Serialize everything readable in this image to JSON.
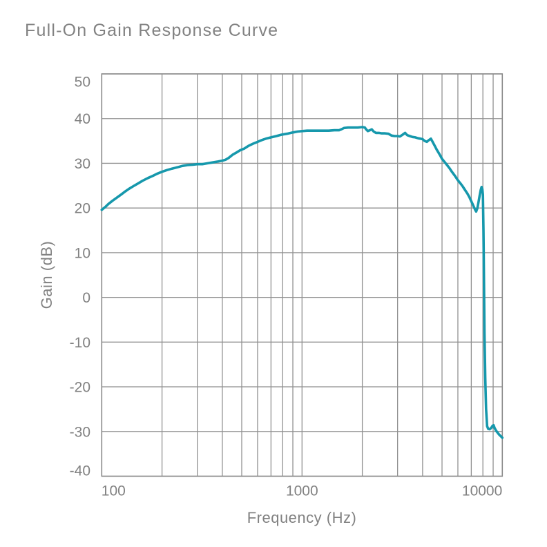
{
  "chart_data": {
    "type": "line",
    "title": "Full-On Gain Response Curve",
    "xlabel": "Frequency (Hz)",
    "ylabel": "Gain (dB)",
    "x_scale": "log",
    "xlim": [
      100,
      10000
    ],
    "ylim": [
      -40,
      50
    ],
    "grid": true,
    "legend": false,
    "x_ticks": [
      100,
      1000,
      10000
    ],
    "x_tick_labels": [
      "100",
      "1000",
      "10000"
    ],
    "y_ticks": [
      50,
      40,
      30,
      20,
      10,
      0,
      -10,
      -20,
      -30,
      -40
    ],
    "y_tick_labels": [
      "50",
      "40",
      "30",
      "20",
      "10",
      "0",
      "-10",
      "-20",
      "-30",
      "-40"
    ],
    "x_gridlines": [
      100,
      200,
      300,
      400,
      500,
      600,
      700,
      800,
      900,
      1000,
      2000,
      3000,
      4000,
      5000,
      6000,
      7000,
      8000,
      9000,
      10000
    ],
    "y_gridlines": [
      -40,
      -30,
      -20,
      -10,
      0,
      10,
      20,
      30,
      40,
      50
    ],
    "line_color": "#1698ac",
    "grid_color": "#919191",
    "frame_color": "#8a8a8a",
    "label_color": "#818181",
    "title_color": "#828282",
    "series": [
      {
        "name": "Full-On Gain",
        "points": [
          [
            100,
            19.6
          ],
          [
            104,
            20.2
          ],
          [
            108,
            20.9
          ],
          [
            113,
            21.6
          ],
          [
            118,
            22.2
          ],
          [
            124,
            22.9
          ],
          [
            130,
            23.6
          ],
          [
            137,
            24.3
          ],
          [
            144,
            24.9
          ],
          [
            152,
            25.5
          ],
          [
            160,
            26.1
          ],
          [
            170,
            26.7
          ],
          [
            180,
            27.2
          ],
          [
            190,
            27.7
          ],
          [
            200,
            28.1
          ],
          [
            212,
            28.5
          ],
          [
            224,
            28.8
          ],
          [
            238,
            29.1
          ],
          [
            252,
            29.4
          ],
          [
            268,
            29.6
          ],
          [
            285,
            29.7
          ],
          [
            300,
            29.8
          ],
          [
            318,
            29.8
          ],
          [
            338,
            30.0
          ],
          [
            358,
            30.2
          ],
          [
            380,
            30.4
          ],
          [
            400,
            30.6
          ],
          [
            415,
            30.8
          ],
          [
            430,
            31.2
          ],
          [
            450,
            31.9
          ],
          [
            470,
            32.4
          ],
          [
            490,
            32.9
          ],
          [
            515,
            33.3
          ],
          [
            540,
            33.9
          ],
          [
            570,
            34.4
          ],
          [
            600,
            34.8
          ],
          [
            630,
            35.2
          ],
          [
            660,
            35.5
          ],
          [
            700,
            35.8
          ],
          [
            745,
            36.1
          ],
          [
            790,
            36.4
          ],
          [
            840,
            36.6
          ],
          [
            900,
            36.9
          ],
          [
            950,
            37.1
          ],
          [
            1000,
            37.2
          ],
          [
            1060,
            37.3
          ],
          [
            1130,
            37.3
          ],
          [
            1200,
            37.3
          ],
          [
            1280,
            37.3
          ],
          [
            1360,
            37.3
          ],
          [
            1450,
            37.4
          ],
          [
            1530,
            37.4
          ],
          [
            1570,
            37.6
          ],
          [
            1620,
            37.9
          ],
          [
            1700,
            38.0
          ],
          [
            1800,
            38.0
          ],
          [
            1900,
            38.0
          ],
          [
            2000,
            38.1
          ],
          [
            2060,
            38.0
          ],
          [
            2090,
            37.6
          ],
          [
            2130,
            37.2
          ],
          [
            2180,
            37.4
          ],
          [
            2230,
            37.6
          ],
          [
            2280,
            37.1
          ],
          [
            2340,
            36.8
          ],
          [
            2420,
            36.8
          ],
          [
            2500,
            36.7
          ],
          [
            2600,
            36.7
          ],
          [
            2700,
            36.6
          ],
          [
            2800,
            36.2
          ],
          [
            2900,
            36.1
          ],
          [
            3000,
            36.1
          ],
          [
            3080,
            36.0
          ],
          [
            3180,
            36.4
          ],
          [
            3270,
            36.8
          ],
          [
            3350,
            36.3
          ],
          [
            3450,
            36.1
          ],
          [
            3560,
            35.9
          ],
          [
            3680,
            35.8
          ],
          [
            3800,
            35.6
          ],
          [
            3900,
            35.5
          ],
          [
            4000,
            35.4
          ],
          [
            4100,
            35.0
          ],
          [
            4200,
            34.8
          ],
          [
            4300,
            35.2
          ],
          [
            4400,
            35.5
          ],
          [
            4500,
            34.7
          ],
          [
            4600,
            33.9
          ],
          [
            4700,
            33.1
          ],
          [
            4800,
            32.4
          ],
          [
            4900,
            31.7
          ],
          [
            5000,
            31.0
          ],
          [
            5150,
            30.3
          ],
          [
            5300,
            29.6
          ],
          [
            5450,
            28.9
          ],
          [
            5600,
            28.1
          ],
          [
            5800,
            27.2
          ],
          [
            6000,
            26.2
          ],
          [
            6180,
            25.5
          ],
          [
            6350,
            24.8
          ],
          [
            6500,
            24.1
          ],
          [
            6700,
            23.2
          ],
          [
            6850,
            22.4
          ],
          [
            7000,
            21.5
          ],
          [
            7100,
            20.9
          ],
          [
            7200,
            20.3
          ],
          [
            7300,
            19.7
          ],
          [
            7400,
            19.2
          ],
          [
            7500,
            19.9
          ],
          [
            7600,
            21.2
          ],
          [
            7700,
            22.7
          ],
          [
            7800,
            24.0
          ],
          [
            7880,
            24.7
          ],
          [
            7950,
            24.2
          ],
          [
            8000,
            23.0
          ],
          [
            8050,
            15.0
          ],
          [
            8100,
            3.0
          ],
          [
            8150,
            -8.0
          ],
          [
            8220,
            -18.0
          ],
          [
            8300,
            -25.0
          ],
          [
            8400,
            -28.8
          ],
          [
            8500,
            -29.4
          ],
          [
            8650,
            -29.5
          ],
          [
            8800,
            -29.2
          ],
          [
            8950,
            -28.7
          ],
          [
            9050,
            -28.6
          ],
          [
            9150,
            -29.2
          ],
          [
            9300,
            -29.8
          ],
          [
            9450,
            -30.2
          ],
          [
            9600,
            -30.6
          ],
          [
            9750,
            -30.9
          ],
          [
            9900,
            -31.2
          ],
          [
            10000,
            -31.4
          ]
        ]
      }
    ]
  }
}
